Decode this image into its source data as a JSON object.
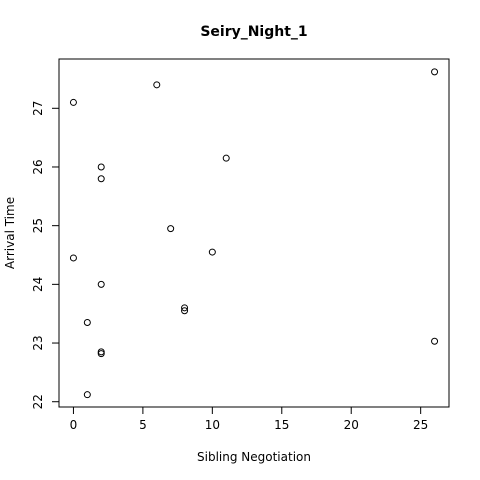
{
  "chart_data": {
    "type": "scatter",
    "title": "Seiry_Night_1",
    "xlabel": "Sibling Negotiation",
    "ylabel": "Arrival Time",
    "xlim": [
      -1.04,
      27.04
    ],
    "ylim": [
      21.91,
      27.84
    ],
    "xticks": [
      0,
      5,
      10,
      15,
      20,
      25
    ],
    "yticks": [
      22,
      23,
      24,
      25,
      26,
      27
    ],
    "grid": false,
    "points": [
      {
        "x": 0,
        "y": 27.1
      },
      {
        "x": 6,
        "y": 27.4
      },
      {
        "x": 26,
        "y": 27.62
      },
      {
        "x": 11,
        "y": 26.15
      },
      {
        "x": 2,
        "y": 26.0
      },
      {
        "x": 2,
        "y": 25.8
      },
      {
        "x": 7,
        "y": 24.95
      },
      {
        "x": 10,
        "y": 24.55
      },
      {
        "x": 0,
        "y": 24.45
      },
      {
        "x": 2,
        "y": 24.0
      },
      {
        "x": 8,
        "y": 23.6
      },
      {
        "x": 8,
        "y": 23.55
      },
      {
        "x": 1,
        "y": 23.35
      },
      {
        "x": 26,
        "y": 23.03
      },
      {
        "x": 2,
        "y": 22.85
      },
      {
        "x": 2,
        "y": 22.82
      },
      {
        "x": 1,
        "y": 22.12
      }
    ]
  }
}
